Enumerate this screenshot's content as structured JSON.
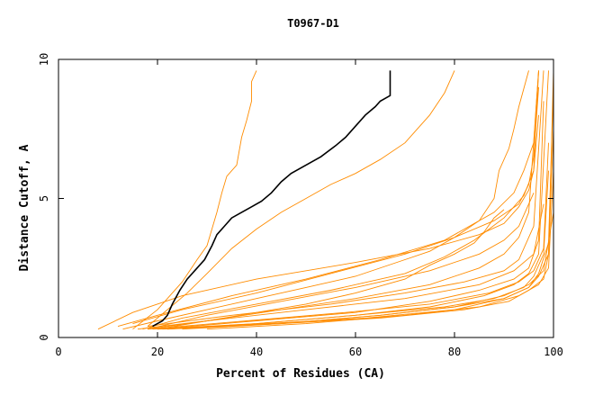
{
  "chart_data": {
    "type": "line",
    "title": "T0967-D1",
    "xlabel": "Percent of Residues (CA)",
    "ylabel": "Distance Cutoff, A",
    "xlim": [
      0,
      100
    ],
    "ylim": [
      0,
      10
    ],
    "x_ticks": [
      "0",
      "20",
      "40",
      "60",
      "80",
      "100"
    ],
    "y_ticks": [
      "0",
      "5",
      "10"
    ],
    "grid": false,
    "legend": "none",
    "colors": {
      "highlight": "#000000",
      "others": "#ff8c00"
    },
    "highlight_series": {
      "x": [
        19,
        21,
        22,
        23,
        24.5,
        26,
        28,
        29.5,
        31,
        32,
        33.5,
        35,
        37,
        39,
        41,
        43,
        45,
        47,
        50,
        53,
        56,
        58,
        60,
        62,
        64,
        65,
        66,
        67,
        67
      ],
      "y": [
        0.4,
        0.6,
        0.8,
        1.2,
        1.7,
        2.1,
        2.5,
        2.8,
        3.3,
        3.7,
        4.0,
        4.3,
        4.5,
        4.7,
        4.9,
        5.2,
        5.6,
        5.9,
        6.2,
        6.5,
        6.9,
        7.2,
        7.6,
        8.0,
        8.3,
        8.5,
        8.6,
        8.7,
        9.6
      ]
    },
    "series": [
      {
        "x": [
          15,
          20,
          25,
          28,
          30,
          32,
          33,
          34,
          36,
          37,
          38,
          39,
          39,
          40
        ],
        "y": [
          0.3,
          1.0,
          2.0,
          2.8,
          3.3,
          4.5,
          5.2,
          5.8,
          6.2,
          7.2,
          7.8,
          8.5,
          9.2,
          9.6
        ]
      },
      {
        "x": [
          18,
          22,
          26,
          30,
          35,
          40,
          45,
          50,
          55,
          60,
          65,
          70,
          72,
          75,
          78,
          80
        ],
        "y": [
          0.4,
          1.0,
          1.6,
          2.3,
          3.2,
          3.9,
          4.5,
          5.0,
          5.5,
          5.9,
          6.4,
          7.0,
          7.4,
          8.0,
          8.8,
          9.6
        ]
      },
      {
        "x": [
          13,
          20,
          30,
          40,
          50,
          60,
          70,
          75,
          80,
          85,
          88,
          89,
          91,
          92,
          93,
          95
        ],
        "y": [
          0.3,
          0.6,
          1.0,
          1.4,
          1.8,
          2.2,
          2.8,
          3.1,
          3.6,
          4.2,
          5.0,
          6.0,
          6.8,
          7.5,
          8.3,
          9.6
        ]
      },
      {
        "x": [
          20,
          30,
          40,
          50,
          60,
          70,
          75,
          80,
          84,
          86,
          88,
          90
        ],
        "y": [
          0.3,
          0.6,
          0.9,
          1.2,
          1.6,
          2.1,
          2.6,
          3.0,
          3.4,
          3.8,
          4.3,
          4.6
        ]
      },
      {
        "x": [
          8,
          15,
          25,
          40,
          60,
          75,
          85,
          90,
          93,
          95,
          96,
          97
        ],
        "y": [
          0.3,
          0.9,
          1.5,
          2.1,
          2.7,
          3.2,
          3.7,
          4.1,
          4.7,
          5.3,
          6.0,
          9.6
        ]
      },
      {
        "x": [
          12,
          20,
          35,
          50,
          65,
          78,
          88,
          92,
          94,
          96,
          97
        ],
        "y": [
          0.4,
          0.8,
          1.5,
          2.1,
          2.8,
          3.5,
          4.5,
          5.2,
          6.0,
          7.0,
          9.6
        ]
      },
      {
        "x": [
          15,
          25,
          40,
          55,
          70,
          80,
          88,
          93,
          95,
          96,
          97
        ],
        "y": [
          0.5,
          1.0,
          1.6,
          2.3,
          3.0,
          3.6,
          4.2,
          4.8,
          5.5,
          6.5,
          9.0
        ]
      },
      {
        "x": [
          17,
          25,
          40,
          55,
          70,
          78,
          84,
          90,
          94,
          96,
          97
        ],
        "y": [
          0.3,
          0.7,
          1.2,
          1.7,
          2.3,
          2.9,
          3.5,
          4.3,
          5.1,
          6.0,
          8.0
        ]
      },
      {
        "x": [
          18,
          30,
          45,
          60,
          75,
          85,
          90,
          93,
          95,
          97
        ],
        "y": [
          0.3,
          0.6,
          1.0,
          1.4,
          1.9,
          2.5,
          3.0,
          3.6,
          4.5,
          9.6
        ]
      },
      {
        "x": [
          18,
          35,
          55,
          70,
          82,
          90,
          93,
          96,
          98
        ],
        "y": [
          0.4,
          0.8,
          1.2,
          1.6,
          2.0,
          2.4,
          2.8,
          4.0,
          9.6
        ]
      },
      {
        "x": [
          20,
          40,
          60,
          75,
          85,
          92,
          95,
          97,
          98
        ],
        "y": [
          0.3,
          0.6,
          0.9,
          1.3,
          1.7,
          2.1,
          2.5,
          3.5,
          8.5
        ]
      },
      {
        "x": [
          22,
          40,
          60,
          75,
          86,
          92,
          95,
          97,
          99
        ],
        "y": [
          0.3,
          0.5,
          0.8,
          1.1,
          1.5,
          1.9,
          2.3,
          3.0,
          9.6
        ]
      },
      {
        "x": [
          18,
          38,
          58,
          75,
          87,
          93,
          96,
          98,
          99
        ],
        "y": [
          0.3,
          0.6,
          0.9,
          1.2,
          1.6,
          2.0,
          2.4,
          3.2,
          7.0
        ]
      },
      {
        "x": [
          19,
          40,
          60,
          78,
          88,
          94,
          96,
          98,
          99
        ],
        "y": [
          0.3,
          0.5,
          0.8,
          1.1,
          1.4,
          1.8,
          2.2,
          3.0,
          6.0
        ]
      },
      {
        "x": [
          20,
          42,
          62,
          80,
          90,
          95,
          97,
          99,
          100
        ],
        "y": [
          0.3,
          0.5,
          0.7,
          1.0,
          1.4,
          1.8,
          2.2,
          3.0,
          9.6
        ]
      },
      {
        "x": [
          21,
          45,
          65,
          80,
          90,
          95,
          97,
          99,
          100
        ],
        "y": [
          0.3,
          0.5,
          0.8,
          1.1,
          1.4,
          1.8,
          2.3,
          3.4,
          9.0
        ]
      },
      {
        "x": [
          22,
          45,
          65,
          82,
          91,
          95,
          98,
          99,
          100
        ],
        "y": [
          0.3,
          0.5,
          0.7,
          1.0,
          1.3,
          1.7,
          2.1,
          3.0,
          7.5
        ]
      },
      {
        "x": [
          16,
          30,
          50,
          70,
          85,
          92,
          96,
          98
        ],
        "y": [
          0.3,
          0.6,
          1.0,
          1.4,
          1.9,
          2.4,
          3.0,
          4.8
        ]
      },
      {
        "x": [
          25,
          45,
          65,
          80,
          90,
          95,
          98,
          100
        ],
        "y": [
          0.3,
          0.5,
          0.8,
          1.1,
          1.5,
          1.9,
          2.4,
          4.5
        ]
      },
      {
        "x": [
          30,
          50,
          70,
          85,
          93,
          97,
          99,
          100
        ],
        "y": [
          0.3,
          0.5,
          0.8,
          1.1,
          1.5,
          1.9,
          2.5,
          6.0
        ]
      },
      {
        "x": [
          18,
          30,
          45,
          60,
          75,
          85,
          90,
          93,
          96
        ],
        "y": [
          0.3,
          0.8,
          1.3,
          1.8,
          2.4,
          3.0,
          3.5,
          4.0,
          5.2
        ]
      }
    ]
  }
}
